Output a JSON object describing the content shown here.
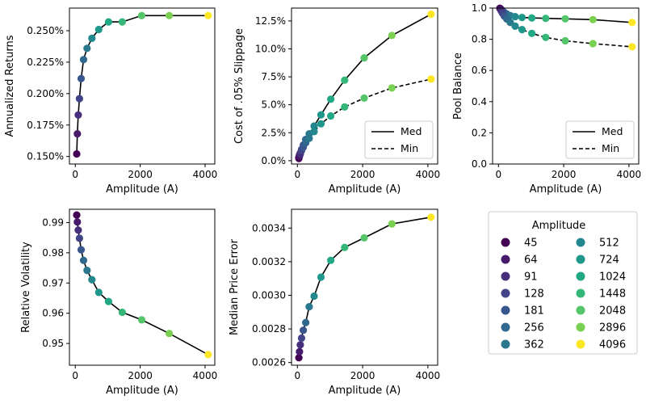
{
  "figure": {
    "legend_title": "Amplitude"
  },
  "amplitudes": [
    45,
    64,
    91,
    128,
    181,
    256,
    362,
    512,
    724,
    1024,
    1448,
    2048,
    2896,
    4096
  ],
  "colors": [
    "#440154",
    "#481a6c",
    "#472f7d",
    "#414487",
    "#39568c",
    "#31688e",
    "#2a788e",
    "#23888e",
    "#1f988b",
    "#22a884",
    "#35b779",
    "#54c568",
    "#7ad151",
    "#fde725"
  ],
  "legend_labels": [
    "45",
    "64",
    "91",
    "128",
    "181",
    "256",
    "362",
    "512",
    "724",
    "1024",
    "1448",
    "2048",
    "2896",
    "4096"
  ],
  "chart_data": [
    {
      "type": "line",
      "xlabel": "Amplitude (A)",
      "ylabel": "Annualized Returns",
      "xlim": [
        -180,
        4300
      ],
      "ylim": [
        0.00144,
        0.00268
      ],
      "xticks": [
        0,
        2000,
        4000
      ],
      "xtick_labels": [
        "0",
        "2000",
        "4000"
      ],
      "yticks": [
        0.0015,
        0.00175,
        0.002,
        0.00225,
        0.0025
      ],
      "ytick_labels": [
        "0.150%",
        "0.175%",
        "0.200%",
        "0.225%",
        "0.250%"
      ],
      "series": [
        {
          "style": "solid",
          "x": [
            45,
            64,
            91,
            128,
            181,
            256,
            362,
            512,
            724,
            1024,
            1448,
            2048,
            2896,
            4096
          ],
          "values": [
            0.00152,
            0.00168,
            0.00183,
            0.00196,
            0.00212,
            0.00227,
            0.00236,
            0.00244,
            0.00251,
            0.00257,
            0.00257,
            0.00262,
            0.00262,
            0.00262
          ]
        }
      ]
    },
    {
      "type": "line",
      "xlabel": "Amplitude (A)",
      "ylabel": "Cost of .05% Slippage",
      "xlim": [
        -180,
        4300
      ],
      "ylim": [
        -0.003,
        0.1365
      ],
      "xticks": [
        0,
        2000,
        4000
      ],
      "xtick_labels": [
        "0",
        "2000",
        "4000"
      ],
      "yticks": [
        0,
        0.025,
        0.05,
        0.075,
        0.1,
        0.125
      ],
      "ytick_labels": [
        "0.0%",
        "2.5%",
        "5.0%",
        "7.5%",
        "10.0%",
        "12.5%"
      ],
      "legend": {
        "position": "lower-right",
        "entries": [
          "Med",
          "Min"
        ]
      },
      "series": [
        {
          "name": "Med",
          "style": "solid",
          "x": [
            45,
            64,
            91,
            128,
            181,
            256,
            362,
            512,
            724,
            1024,
            1448,
            2048,
            2896,
            4096
          ],
          "values": [
            0.003,
            0.005,
            0.007,
            0.01,
            0.014,
            0.019,
            0.024,
            0.031,
            0.041,
            0.055,
            0.072,
            0.092,
            0.112,
            0.131
          ]
        },
        {
          "name": "Min",
          "style": "dashed",
          "x": [
            45,
            64,
            91,
            128,
            181,
            256,
            362,
            512,
            724,
            1024,
            1448,
            2048,
            2896,
            4096
          ],
          "values": [
            0.002,
            0.004,
            0.006,
            0.009,
            0.012,
            0.016,
            0.02,
            0.026,
            0.033,
            0.04,
            0.048,
            0.056,
            0.065,
            0.073
          ]
        }
      ]
    },
    {
      "type": "line",
      "xlabel": "Amplitude (A)",
      "ylabel": "Pool Balance",
      "xlim": [
        -180,
        4300
      ],
      "ylim": [
        0,
        1.0
      ],
      "xticks": [
        0,
        2000,
        4000
      ],
      "xtick_labels": [
        "0",
        "2000",
        "4000"
      ],
      "yticks": [
        0,
        0.2,
        0.4,
        0.6,
        0.8,
        1.0
      ],
      "ytick_labels": [
        "0.0",
        "0.2",
        "0.4",
        "0.6",
        "0.8",
        "1.0"
      ],
      "legend": {
        "position": "lower-right",
        "entries": [
          "Med",
          "Min"
        ]
      },
      "series": [
        {
          "name": "Med",
          "style": "solid",
          "x": [
            45,
            64,
            91,
            128,
            181,
            256,
            362,
            512,
            724,
            1024,
            1448,
            2048,
            2896,
            4096
          ],
          "values": [
            0.999,
            0.995,
            0.99,
            0.982,
            0.972,
            0.962,
            0.952,
            0.945,
            0.94,
            0.937,
            0.934,
            0.931,
            0.926,
            0.908
          ]
        },
        {
          "name": "Min",
          "style": "dashed",
          "x": [
            45,
            64,
            91,
            128,
            181,
            256,
            362,
            512,
            724,
            1024,
            1448,
            2048,
            2896,
            4096
          ],
          "values": [
            0.998,
            0.99,
            0.98,
            0.966,
            0.948,
            0.93,
            0.908,
            0.884,
            0.862,
            0.838,
            0.812,
            0.79,
            0.772,
            0.752
          ]
        }
      ]
    },
    {
      "type": "line",
      "xlabel": "Amplitude (A)",
      "ylabel": "Relative Volatility",
      "xlim": [
        -180,
        4300
      ],
      "ylim": [
        0.9428,
        0.9944
      ],
      "xticks": [
        0,
        2000,
        4000
      ],
      "xtick_labels": [
        "0",
        "2000",
        "4000"
      ],
      "yticks": [
        0.95,
        0.96,
        0.97,
        0.98,
        0.99
      ],
      "ytick_labels": [
        "0.95",
        "0.96",
        "0.97",
        "0.98",
        "0.99"
      ],
      "series": [
        {
          "style": "solid",
          "x": [
            45,
            64,
            91,
            128,
            181,
            256,
            362,
            512,
            724,
            1024,
            1448,
            2048,
            2896,
            4096
          ],
          "values": [
            0.9925,
            0.9902,
            0.9875,
            0.9848,
            0.981,
            0.9775,
            0.9742,
            0.9711,
            0.9669,
            0.9639,
            0.9603,
            0.9578,
            0.9533,
            0.9463
          ]
        }
      ]
    },
    {
      "type": "line",
      "xlabel": "Amplitude (A)",
      "ylabel": "Median Price Error",
      "xlim": [
        -180,
        4300
      ],
      "ylim": [
        0.002584,
        0.003512
      ],
      "xticks": [
        0,
        2000,
        4000
      ],
      "xtick_labels": [
        "0",
        "2000",
        "4000"
      ],
      "yticks": [
        0.0026,
        0.0028,
        0.003,
        0.0032,
        0.0034
      ],
      "ytick_labels": [
        "0.0026",
        "0.0028",
        "0.0030",
        "0.0032",
        "0.0034"
      ],
      "series": [
        {
          "style": "solid",
          "x": [
            45,
            64,
            91,
            128,
            181,
            256,
            362,
            512,
            724,
            1024,
            1448,
            2048,
            2896,
            4096
          ],
          "values": [
            0.002628,
            0.002665,
            0.002705,
            0.002745,
            0.002792,
            0.002838,
            0.002932,
            0.002995,
            0.003108,
            0.003208,
            0.003285,
            0.003342,
            0.003425,
            0.003465
          ]
        }
      ]
    }
  ]
}
